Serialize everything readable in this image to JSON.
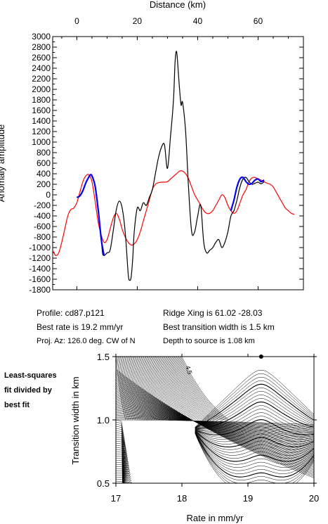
{
  "colors": {
    "observed": "#000000",
    "model": "#ff0000",
    "fit": "#0000ff",
    "axes": "#000000"
  },
  "info": {
    "profile": "Profile: cd87.p121",
    "ridge": "Ridge Xing is 61.02 -28.03",
    "rate": "Best rate is 19.2 mm/yr",
    "transition": "Best transition width is 1.5 km",
    "azimuth": "Proj. Az: 126.0 deg. CW of N",
    "depth": "Depth to source is   1.08 km"
  },
  "side_note": [
    "Least-squares",
    "fit divided by",
    "best fit"
  ],
  "chart_data": [
    {
      "type": "line",
      "title": "",
      "xlabel": "Distance (km)",
      "ylabel": "Anomaly amplitude",
      "xlim": [
        -8,
        75
      ],
      "ylim": [
        -1800,
        3000
      ],
      "xticks": [
        0,
        20,
        40,
        60
      ],
      "yticks": [
        -1800,
        -1600,
        -1400,
        -1200,
        -1000,
        -800,
        -600,
        -400,
        -200,
        0,
        200,
        400,
        600,
        800,
        1000,
        1200,
        1400,
        1600,
        1800,
        2000,
        2200,
        2400,
        2600,
        2800,
        3000
      ],
      "grid": false,
      "series": [
        {
          "role": "observed",
          "color": "#000000",
          "x": [
            0,
            1,
            2,
            3,
            4,
            4.5,
            5,
            6,
            7,
            8,
            8.5,
            9,
            10,
            11,
            12,
            13,
            14,
            15,
            16,
            17,
            17.5,
            18,
            18.5,
            19,
            20,
            21,
            22,
            23,
            24,
            25,
            26,
            27,
            28,
            29,
            30,
            31,
            32,
            32.5,
            33,
            33.5,
            34,
            34.5,
            35,
            36,
            37,
            38,
            39,
            40,
            41,
            42,
            43,
            44,
            45,
            46,
            47,
            48,
            49,
            50,
            51,
            52,
            53,
            54,
            55,
            56,
            57,
            58,
            59,
            60,
            61,
            62
          ],
          "y": [
            -50,
            -20,
            80,
            230,
            340,
            380,
            360,
            180,
            -250,
            -800,
            -1100,
            -1150,
            -1100,
            -1050,
            -700,
            -300,
            -120,
            -250,
            -700,
            -1500,
            -1620,
            -1550,
            -1200,
            -700,
            -250,
            -300,
            -150,
            -200,
            -50,
            100,
            400,
            700,
            900,
            950,
            500,
            1100,
            1800,
            2500,
            2720,
            2400,
            2000,
            1700,
            1750,
            1200,
            100,
            -700,
            -700,
            -400,
            -200,
            -900,
            -1100,
            -1050,
            -1000,
            -900,
            -850,
            -1000,
            -900,
            -700,
            -400,
            -300,
            -100,
            150,
            300,
            330,
            250,
            200,
            220,
            240,
            210,
            250
          ]
        },
        {
          "role": "model",
          "color": "#ff0000",
          "x": [
            -8,
            -7,
            -6,
            -5,
            -4,
            -3,
            -2,
            -1,
            0,
            1,
            2,
            3,
            4,
            5,
            6,
            7,
            8,
            9,
            10,
            11,
            12,
            13,
            14,
            15,
            16,
            17,
            18,
            19,
            20,
            21,
            22,
            23,
            24,
            25,
            26,
            27,
            28,
            29,
            30,
            31,
            32,
            33,
            34,
            35,
            36,
            37,
            38,
            39,
            40,
            41,
            42,
            43,
            44,
            45,
            46,
            47,
            48,
            49,
            50,
            51,
            52,
            53,
            54,
            55,
            56,
            57,
            58,
            59,
            60,
            61,
            62,
            63,
            64,
            65,
            66,
            67,
            68,
            69,
            70,
            71,
            72
          ],
          "y": [
            -1050,
            -1150,
            -1100,
            -900,
            -650,
            -400,
            -280,
            -250,
            -150,
            50,
            250,
            360,
            380,
            250,
            -100,
            -500,
            -750,
            -900,
            -850,
            -650,
            -450,
            -350,
            -450,
            -650,
            -800,
            -900,
            -950,
            -930,
            -850,
            -700,
            -500,
            -300,
            -100,
            100,
            200,
            230,
            240,
            240,
            250,
            300,
            350,
            400,
            450,
            450,
            400,
            300,
            150,
            0,
            -100,
            -200,
            -300,
            -350,
            -350,
            -300,
            -200,
            -100,
            0,
            -50,
            -200,
            -300,
            -350,
            -300,
            -150,
            0,
            100,
            250,
            320,
            330,
            300,
            280,
            250,
            220,
            200,
            150,
            50,
            -50,
            -150,
            -250,
            -300,
            -350,
            -370
          ]
        },
        {
          "role": "fit",
          "color": "#0000ff",
          "x": [
            0,
            1,
            2,
            3,
            4,
            4.5,
            5,
            6,
            7,
            8,
            8.5,
            9,
            51,
            52,
            53,
            54,
            55,
            56,
            57,
            58,
            59,
            60,
            61,
            62
          ],
          "y": [
            -50,
            -20,
            80,
            230,
            340,
            380,
            360,
            180,
            -250,
            -800,
            -1000,
            -1150,
            -300,
            -100,
            150,
            300,
            330,
            250,
            200,
            220,
            280,
            300,
            250,
            280
          ]
        }
      ]
    },
    {
      "type": "contour",
      "title": "",
      "xlabel": "Rate in mm/yr",
      "ylabel": "Transition width in km",
      "xlim": [
        17,
        20
      ],
      "ylim": [
        0.5,
        1.5
      ],
      "xticks": [
        17,
        18,
        19,
        20
      ],
      "yticks": [
        0.5,
        1.0,
        1.5
      ],
      "grid": false,
      "best_fit": {
        "x": 19.2,
        "y": 1.5
      },
      "contour_label": "4.5"
    }
  ]
}
